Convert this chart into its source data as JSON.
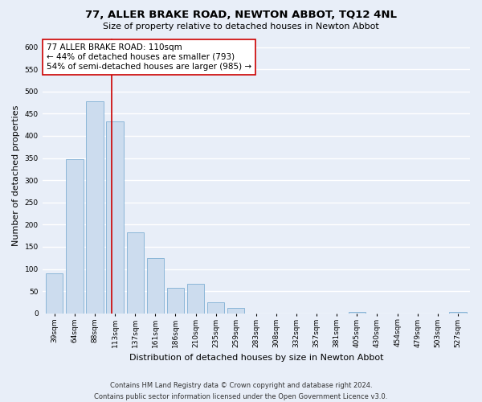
{
  "title": "77, ALLER BRAKE ROAD, NEWTON ABBOT, TQ12 4NL",
  "subtitle": "Size of property relative to detached houses in Newton Abbot",
  "xlabel": "Distribution of detached houses by size in Newton Abbot",
  "ylabel": "Number of detached properties",
  "bar_labels": [
    "39sqm",
    "64sqm",
    "88sqm",
    "113sqm",
    "137sqm",
    "161sqm",
    "186sqm",
    "210sqm",
    "235sqm",
    "259sqm",
    "283sqm",
    "308sqm",
    "332sqm",
    "357sqm",
    "381sqm",
    "405sqm",
    "430sqm",
    "454sqm",
    "479sqm",
    "503sqm",
    "527sqm"
  ],
  "bar_values": [
    90,
    347,
    477,
    433,
    183,
    125,
    57,
    67,
    25,
    12,
    0,
    0,
    0,
    0,
    0,
    3,
    0,
    0,
    0,
    0,
    3
  ],
  "bar_color": "#ccdcee",
  "bar_edge_color": "#7fafd4",
  "vline_x": 2.85,
  "vline_color": "#cc0000",
  "annotation_line1": "77 ALLER BRAKE ROAD: 110sqm",
  "annotation_line2": "← 44% of detached houses are smaller (793)",
  "annotation_line3": "54% of semi-detached houses are larger (985) →",
  "annotation_box_color": "#ffffff",
  "annotation_box_edge": "#cc0000",
  "ylim": [
    0,
    620
  ],
  "yticks": [
    0,
    50,
    100,
    150,
    200,
    250,
    300,
    350,
    400,
    450,
    500,
    550,
    600
  ],
  "footer_line1": "Contains HM Land Registry data © Crown copyright and database right 2024.",
  "footer_line2": "Contains public sector information licensed under the Open Government Licence v3.0.",
  "bg_color": "#e8eef8",
  "plot_bg_color": "#e8eef8",
  "grid_color": "#ffffff",
  "title_fontsize": 9.5,
  "subtitle_fontsize": 8,
  "axis_label_fontsize": 8,
  "tick_fontsize": 6.5,
  "footer_fontsize": 6.0,
  "annotation_fontsize": 7.5
}
